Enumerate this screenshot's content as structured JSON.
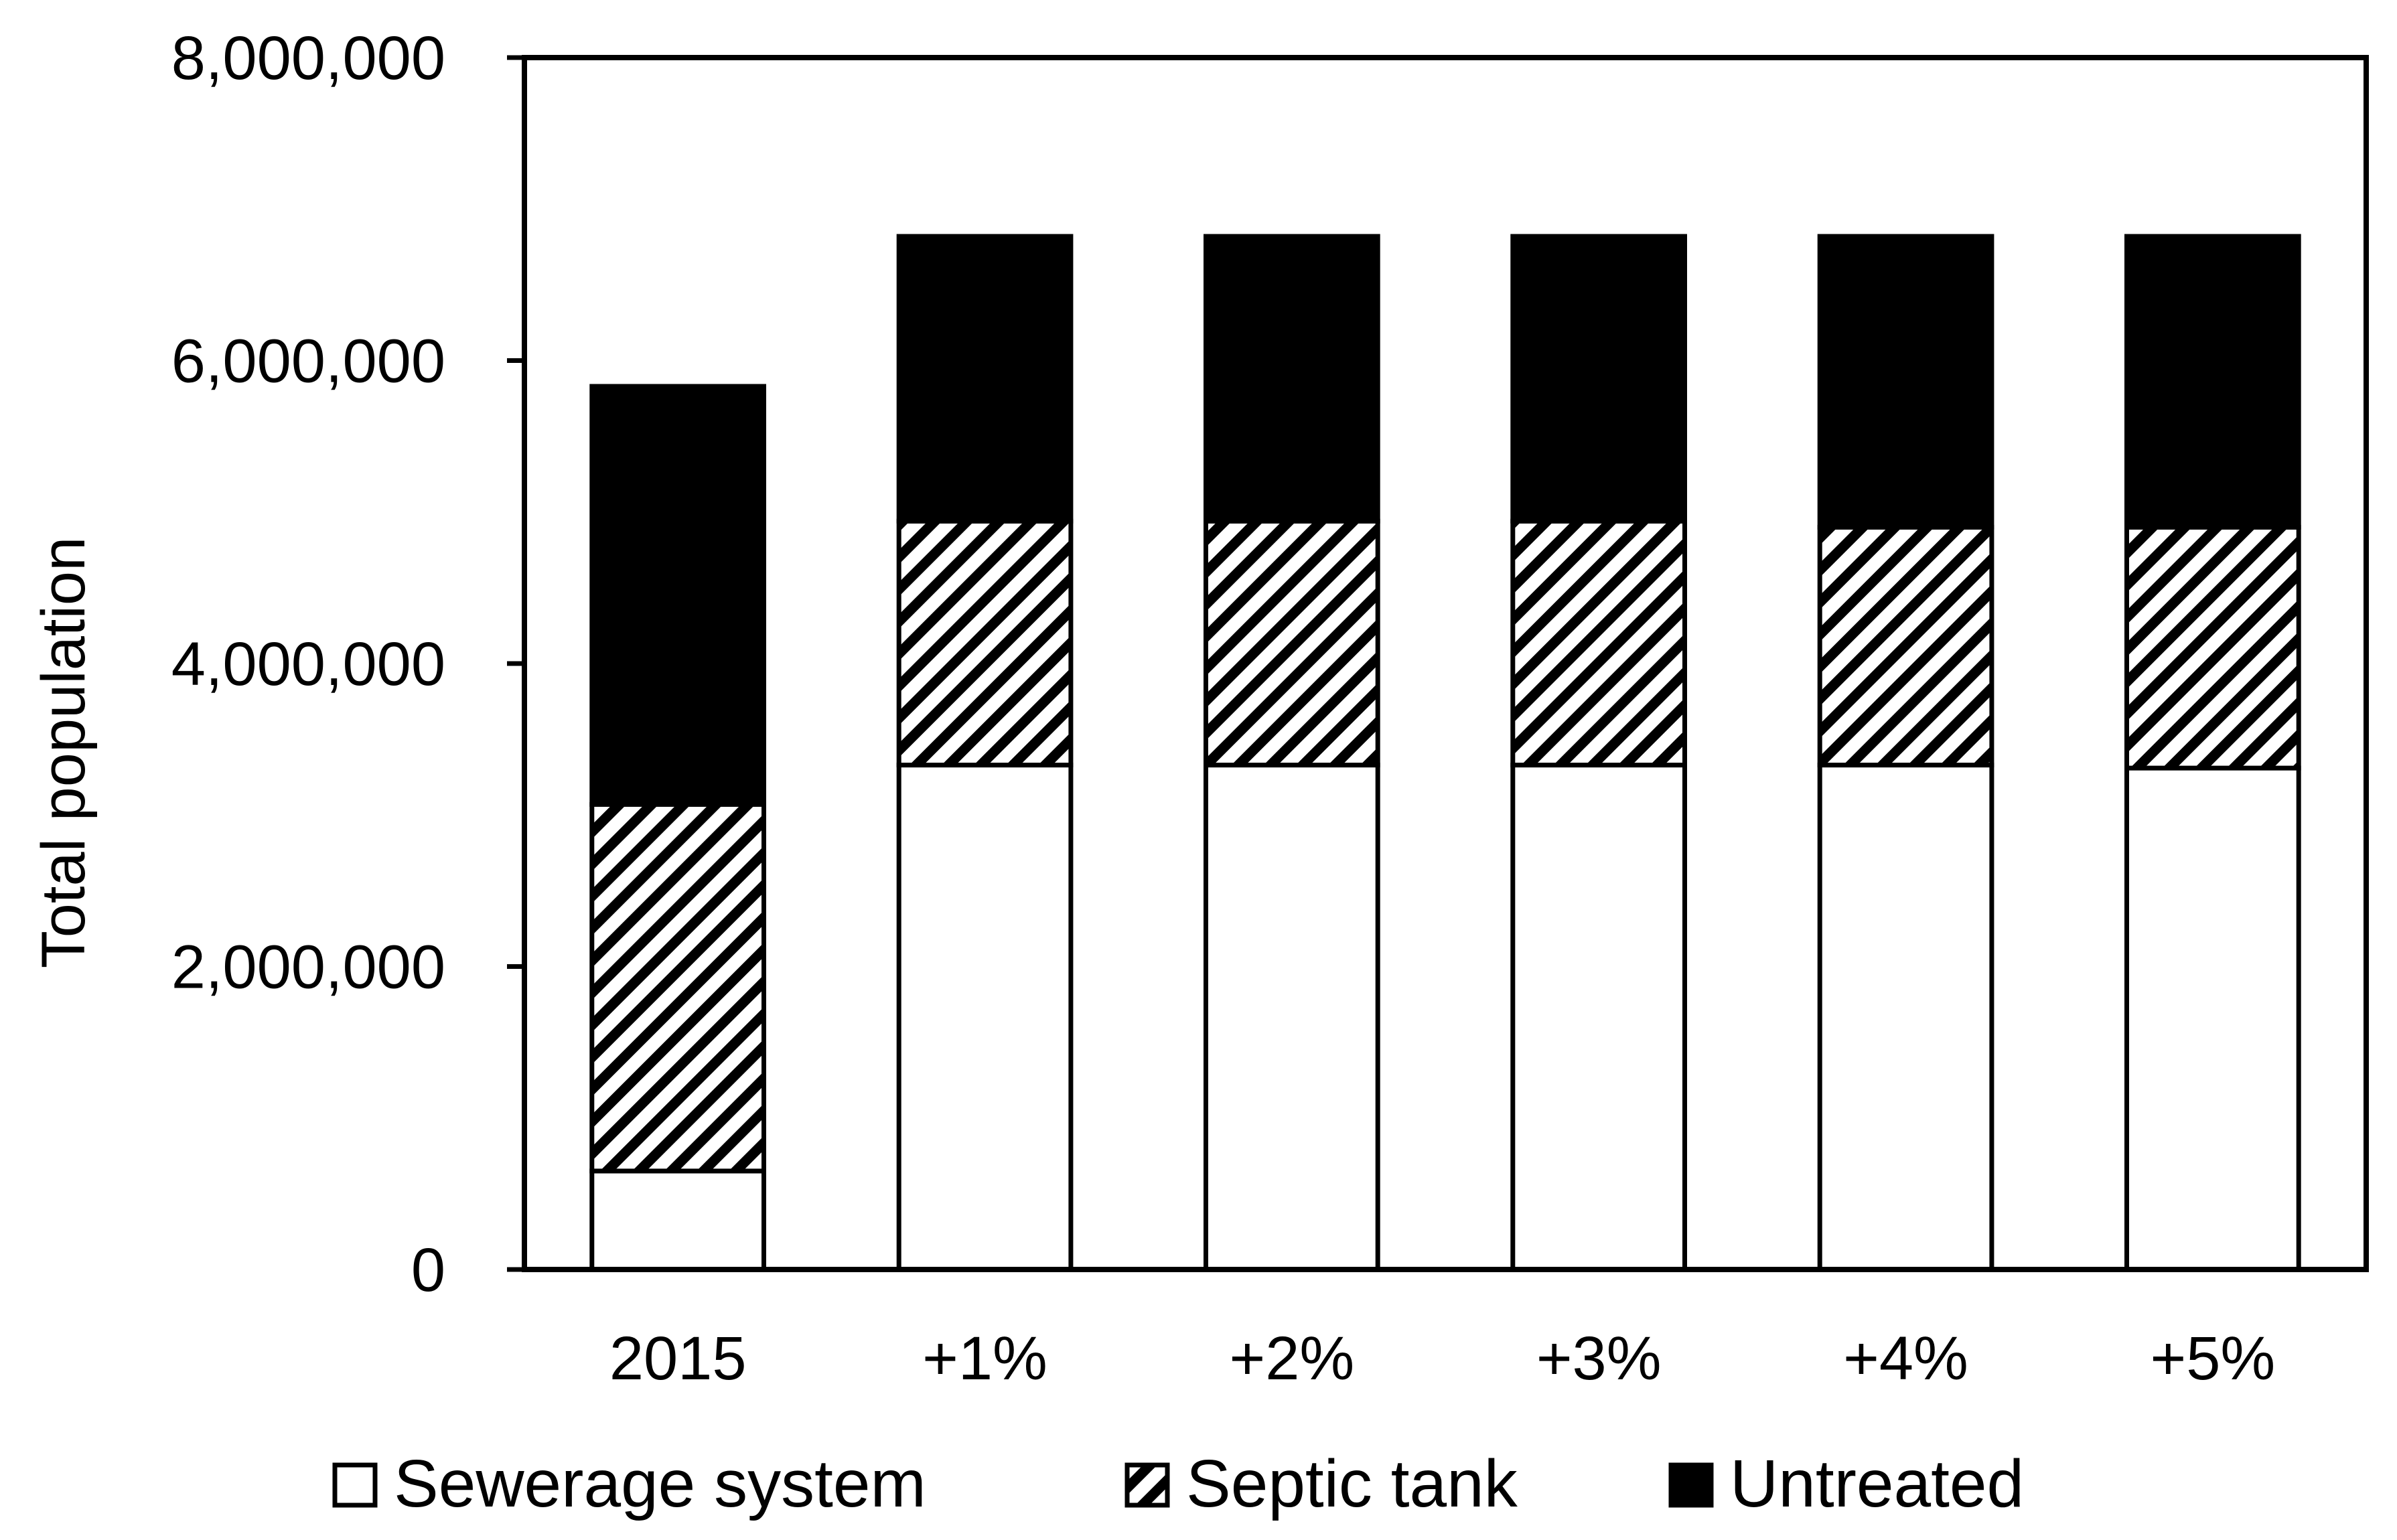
{
  "chart_data": {
    "type": "bar",
    "stacked": true,
    "title": "",
    "xlabel": "",
    "ylabel": "Total population",
    "ylim": [
      0,
      8000000
    ],
    "yticks": [
      0,
      2000000,
      4000000,
      6000000,
      8000000
    ],
    "ytick_labels": [
      "0",
      "2,000,000",
      "4,000,000",
      "6,000,000",
      "8,000,000"
    ],
    "grid": false,
    "legend_position": "bottom",
    "categories": [
      "2015",
      "+1%",
      "+2%",
      "+3%",
      "+4%",
      "+5%"
    ],
    "series": [
      {
        "name": "Sewerage system",
        "style": "white",
        "values": [
          650000,
          3330000,
          3330000,
          3330000,
          3330000,
          3310000
        ]
      },
      {
        "name": "Septic tank",
        "style": "hatched",
        "values": [
          2420000,
          1610000,
          1610000,
          1610000,
          1570000,
          1590000
        ]
      },
      {
        "name": "Untreated",
        "style": "black",
        "values": [
          2760000,
          1880000,
          1880000,
          1880000,
          1920000,
          1920000
        ]
      }
    ]
  }
}
